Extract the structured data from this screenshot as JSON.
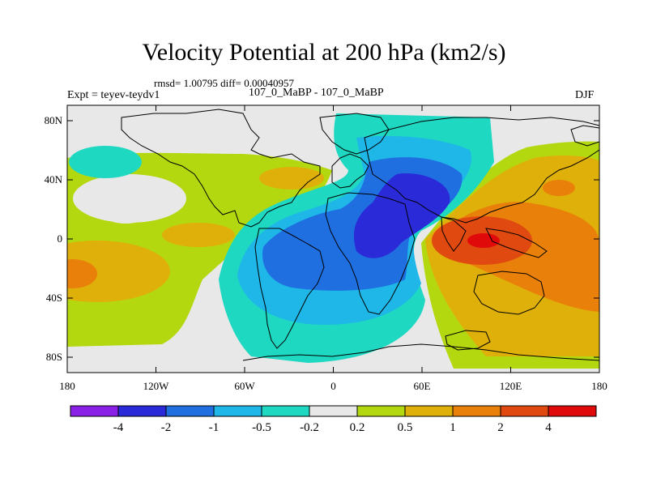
{
  "header": {
    "title": "Velocity Potential at 200 hPa (km2/s)",
    "stats": "rmsd= 1.00795  diff= 0.00040957",
    "experiment": "Expt = teyev-teydv1",
    "runs": "107_0_MaBP - 107_0_MaBP",
    "season": "DJF"
  },
  "axes": {
    "y_labels": [
      "80N",
      "40N",
      "0",
      "40S",
      "80S"
    ],
    "x_labels": [
      "180",
      "120W",
      "60W",
      "0",
      "60E",
      "120E",
      "180"
    ]
  },
  "colorbar": {
    "labels": [
      "-4",
      "-2",
      "-1",
      "-0.5",
      "-0.2",
      "0.2",
      "0.5",
      "1",
      "2",
      "4"
    ],
    "colors": [
      "#8a1fe6",
      "#2a2ad8",
      "#1f6fe0",
      "#1fb6e8",
      "#1ed8c2",
      "#e8e8e8",
      "#b4d80f",
      "#e0b00a",
      "#e8800a",
      "#e04a10",
      "#e00a0a"
    ]
  },
  "palette": {
    "land_background": "#e8e8e8",
    "coast": "#000000"
  }
}
